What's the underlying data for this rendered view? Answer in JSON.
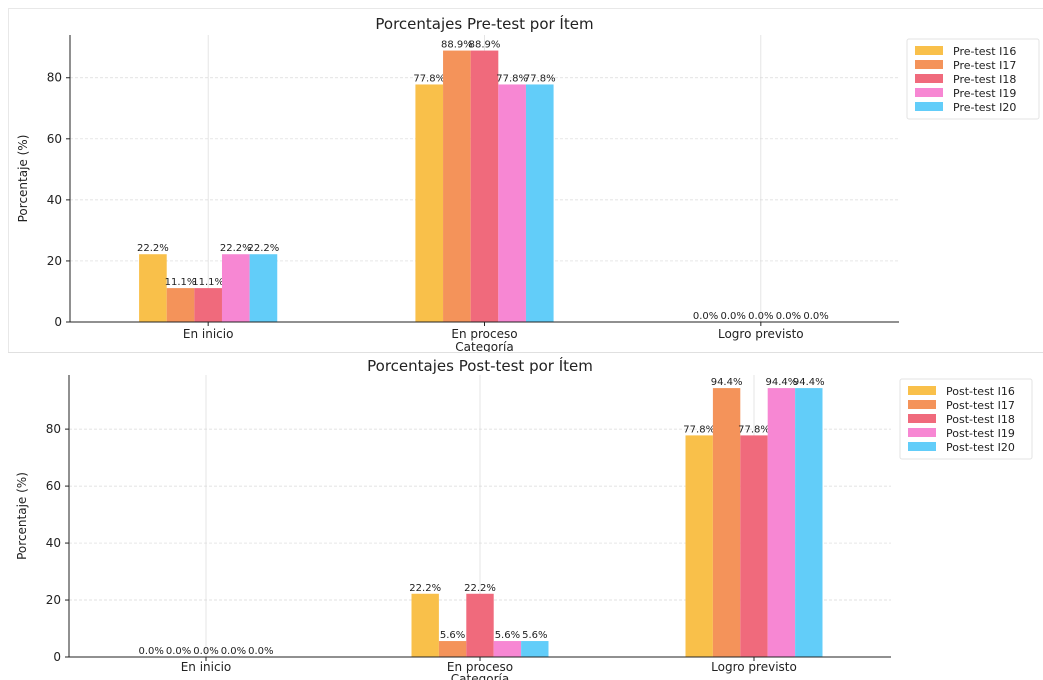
{
  "chart_data": [
    {
      "type": "bar",
      "title": "Porcentajes Pre-test por Ítem",
      "xlabel": "Categoría",
      "ylabel": "Porcentaje (%)",
      "ylim": [
        0,
        94
      ],
      "yticks": [
        0,
        20,
        40,
        60,
        80
      ],
      "grid": true,
      "legend_position": "top-right",
      "categories": [
        "En inicio",
        "En proceso",
        "Logro previsto"
      ],
      "series": [
        {
          "name": "Pre-test I16",
          "color": "#f9c04a",
          "values": [
            22.2,
            77.8,
            0.0
          ],
          "labels": [
            "22.2%",
            "77.8%",
            "0.0%"
          ]
        },
        {
          "name": "Pre-test I17",
          "color": "#f4935a",
          "values": [
            11.1,
            88.9,
            0.0
          ],
          "labels": [
            "11.1%",
            "88.9%",
            "0.0%"
          ]
        },
        {
          "name": "Pre-test I18",
          "color": "#f06a7c",
          "values": [
            11.1,
            88.9,
            0.0
          ],
          "labels": [
            "11.1%",
            "88.9%",
            "0.0%"
          ]
        },
        {
          "name": "Pre-test I19",
          "color": "#f787d3",
          "values": [
            22.2,
            77.8,
            0.0
          ],
          "labels": [
            "22.2%",
            "77.8%",
            "0.0%"
          ]
        },
        {
          "name": "Pre-test I20",
          "color": "#62cdf9",
          "values": [
            22.2,
            77.8,
            0.0
          ],
          "labels": [
            "22.2%",
            "77.8%",
            "0.0%"
          ]
        }
      ]
    },
    {
      "type": "bar",
      "title": "Porcentajes Post-test por Ítem",
      "xlabel": "Categoría",
      "ylabel": "Porcentaje (%)",
      "ylim": [
        0,
        99
      ],
      "yticks": [
        0,
        20,
        40,
        60,
        80
      ],
      "grid": true,
      "legend_position": "top-right",
      "categories": [
        "En inicio",
        "En proceso",
        "Logro previsto"
      ],
      "series": [
        {
          "name": "Post-test I16",
          "color": "#f9c04a",
          "values": [
            0.0,
            22.2,
            77.8
          ],
          "labels": [
            "0.0%",
            "22.2%",
            "77.8%"
          ]
        },
        {
          "name": "Post-test I17",
          "color": "#f4935a",
          "values": [
            0.0,
            5.6,
            94.4
          ],
          "labels": [
            "0.0%",
            "5.6%",
            "94.4%"
          ]
        },
        {
          "name": "Post-test I18",
          "color": "#f06a7c",
          "values": [
            0.0,
            22.2,
            77.8
          ],
          "labels": [
            "0.0%",
            "22.2%",
            "77.8%"
          ]
        },
        {
          "name": "Post-test I19",
          "color": "#f787d3",
          "values": [
            0.0,
            5.6,
            94.4
          ],
          "labels": [
            "0.0%",
            "5.6%",
            "94.4%"
          ]
        },
        {
          "name": "Post-test I20",
          "color": "#62cdf9",
          "values": [
            0.0,
            5.6,
            94.4
          ],
          "labels": [
            "0.0%",
            "5.6%",
            "94.4%"
          ]
        }
      ]
    }
  ]
}
